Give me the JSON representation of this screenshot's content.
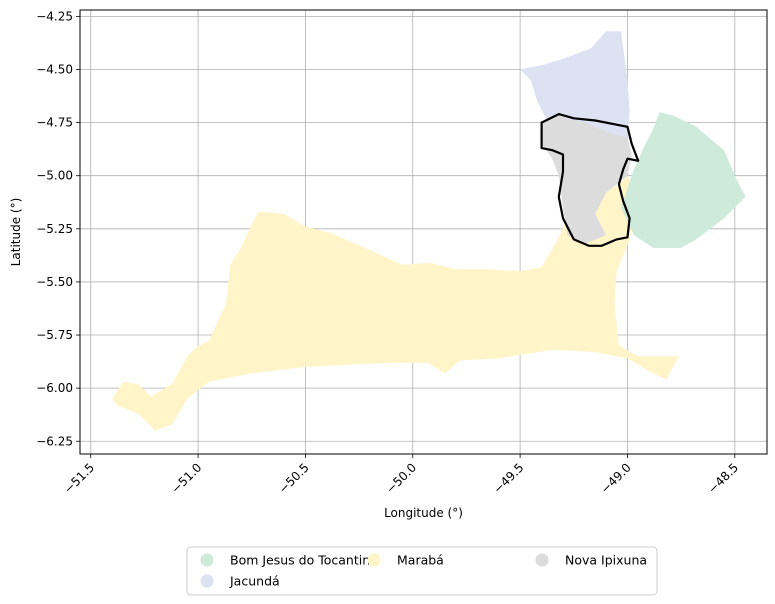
{
  "chart_data": {
    "type": "map",
    "xlabel": "Longitude (°)",
    "ylabel": "Latitude (°)",
    "xlim": [
      -51.55,
      -48.35
    ],
    "ylim": [
      -6.31,
      -4.22
    ],
    "grid": true,
    "x_ticks": [
      -51.5,
      -51.0,
      -50.5,
      -50.0,
      -49.5,
      -49.0,
      -48.5
    ],
    "x_tick_labels": [
      "−51.5",
      "−51.0",
      "−50.5",
      "−50.0",
      "−49.5",
      "−49.0",
      "−48.5"
    ],
    "y_ticks": [
      -4.25,
      -4.5,
      -4.75,
      -5.0,
      -5.25,
      -5.5,
      -5.75,
      -6.0,
      -6.25
    ],
    "y_tick_labels": [
      "−4.25",
      "−4.50",
      "−4.75",
      "−5.00",
      "−5.25",
      "−5.50",
      "−5.75",
      "−6.00",
      "−6.25"
    ],
    "legend_position": "bottom-center",
    "regions": [
      {
        "name": "Marabá",
        "color": "#fff5c8",
        "coords": [
          [
            -51.4,
            -6.05
          ],
          [
            -51.35,
            -5.97
          ],
          [
            -51.28,
            -5.98
          ],
          [
            -51.22,
            -6.04
          ],
          [
            -51.12,
            -5.98
          ],
          [
            -51.05,
            -5.85
          ],
          [
            -51.0,
            -5.8
          ],
          [
            -50.95,
            -5.78
          ],
          [
            -50.87,
            -5.6
          ],
          [
            -50.85,
            -5.42
          ],
          [
            -50.8,
            -5.34
          ],
          [
            -50.76,
            -5.25
          ],
          [
            -50.72,
            -5.17
          ],
          [
            -50.6,
            -5.18
          ],
          [
            -50.5,
            -5.24
          ],
          [
            -50.38,
            -5.27
          ],
          [
            -50.2,
            -5.35
          ],
          [
            -50.05,
            -5.42
          ],
          [
            -49.92,
            -5.41
          ],
          [
            -49.8,
            -5.44
          ],
          [
            -49.65,
            -5.44
          ],
          [
            -49.5,
            -5.45
          ],
          [
            -49.4,
            -5.43
          ],
          [
            -49.33,
            -5.31
          ],
          [
            -49.28,
            -5.2
          ],
          [
            -49.23,
            -5.12
          ],
          [
            -49.15,
            -5.08
          ],
          [
            -49.05,
            -5.05
          ],
          [
            -49.0,
            -5.0
          ],
          [
            -48.97,
            -5.06
          ],
          [
            -48.97,
            -5.16
          ],
          [
            -48.99,
            -5.3
          ],
          [
            -49.05,
            -5.45
          ],
          [
            -49.06,
            -5.6
          ],
          [
            -49.04,
            -5.8
          ],
          [
            -48.95,
            -5.85
          ],
          [
            -48.76,
            -5.85
          ],
          [
            -48.82,
            -5.96
          ],
          [
            -48.9,
            -5.92
          ],
          [
            -49.0,
            -5.86
          ],
          [
            -49.15,
            -5.83
          ],
          [
            -49.35,
            -5.82
          ],
          [
            -49.6,
            -5.86
          ],
          [
            -49.78,
            -5.87
          ],
          [
            -49.85,
            -5.93
          ],
          [
            -49.93,
            -5.88
          ],
          [
            -50.1,
            -5.88
          ],
          [
            -50.3,
            -5.89
          ],
          [
            -50.5,
            -5.9
          ],
          [
            -50.75,
            -5.93
          ],
          [
            -50.95,
            -5.97
          ],
          [
            -51.05,
            -6.05
          ],
          [
            -51.12,
            -6.17
          ],
          [
            -51.2,
            -6.2
          ],
          [
            -51.28,
            -6.12
          ],
          [
            -51.38,
            -6.08
          ]
        ]
      },
      {
        "name": "Jacundá",
        "color": "#dde2f2",
        "coords": [
          [
            -49.5,
            -4.5
          ],
          [
            -49.45,
            -4.55
          ],
          [
            -49.42,
            -4.65
          ],
          [
            -49.37,
            -4.75
          ],
          [
            -49.25,
            -4.78
          ],
          [
            -49.1,
            -4.8
          ],
          [
            -49.0,
            -4.82
          ],
          [
            -48.99,
            -4.7
          ],
          [
            -49.0,
            -4.55
          ],
          [
            -49.02,
            -4.4
          ],
          [
            -49.03,
            -4.32
          ],
          [
            -49.1,
            -4.32
          ],
          [
            -49.17,
            -4.4
          ],
          [
            -49.3,
            -4.45
          ],
          [
            -49.4,
            -4.48
          ]
        ]
      },
      {
        "name": "Nova Ipixuna",
        "color": "#dcdcdc",
        "coords": [
          [
            -49.4,
            -4.75
          ],
          [
            -49.32,
            -4.72
          ],
          [
            -49.2,
            -4.75
          ],
          [
            -49.08,
            -4.8
          ],
          [
            -49.0,
            -4.82
          ],
          [
            -48.98,
            -4.9
          ],
          [
            -49.0,
            -5.0
          ],
          [
            -49.1,
            -5.08
          ],
          [
            -49.15,
            -5.18
          ],
          [
            -49.1,
            -5.28
          ],
          [
            -49.2,
            -5.32
          ],
          [
            -49.28,
            -5.28
          ],
          [
            -49.3,
            -5.15
          ],
          [
            -49.32,
            -5.0
          ],
          [
            -49.35,
            -4.92
          ],
          [
            -49.4,
            -4.85
          ]
        ]
      },
      {
        "name": "Bom Jesus do Tocantins",
        "color": "#cdeadb",
        "coords": [
          [
            -48.97,
            -4.97
          ],
          [
            -48.93,
            -4.88
          ],
          [
            -48.88,
            -4.78
          ],
          [
            -48.85,
            -4.7
          ],
          [
            -48.78,
            -4.72
          ],
          [
            -48.68,
            -4.77
          ],
          [
            -48.55,
            -4.88
          ],
          [
            -48.5,
            -5.0
          ],
          [
            -48.45,
            -5.1
          ],
          [
            -48.55,
            -5.2
          ],
          [
            -48.68,
            -5.3
          ],
          [
            -48.75,
            -5.34
          ],
          [
            -48.88,
            -5.34
          ],
          [
            -48.97,
            -5.28
          ],
          [
            -49.03,
            -5.15
          ]
        ]
      }
    ],
    "outline": [
      [
        -49.4,
        -4.75
      ],
      [
        -49.32,
        -4.71
      ],
      [
        -49.25,
        -4.73
      ],
      [
        -49.15,
        -4.74
      ],
      [
        -49.05,
        -4.76
      ],
      [
        -49.0,
        -4.77
      ],
      [
        -48.98,
        -4.85
      ],
      [
        -48.95,
        -4.93
      ],
      [
        -49.0,
        -4.92
      ],
      [
        -49.02,
        -4.97
      ],
      [
        -49.04,
        -5.04
      ],
      [
        -49.02,
        -5.12
      ],
      [
        -48.99,
        -5.2
      ],
      [
        -49.0,
        -5.29
      ],
      [
        -49.05,
        -5.3
      ],
      [
        -49.12,
        -5.33
      ],
      [
        -49.18,
        -5.33
      ],
      [
        -49.25,
        -5.3
      ],
      [
        -49.3,
        -5.2
      ],
      [
        -49.32,
        -5.1
      ],
      [
        -49.3,
        -4.98
      ],
      [
        -49.3,
        -4.9
      ],
      [
        -49.35,
        -4.88
      ],
      [
        -49.4,
        -4.87
      ],
      [
        -49.4,
        -4.8
      ]
    ]
  },
  "legend": {
    "items": [
      {
        "label": "Bom Jesus do Tocantins",
        "color": "#cdeadb"
      },
      {
        "label": "Jacundá",
        "color": "#dde2f2"
      },
      {
        "label": "Marabá",
        "color": "#fff5c8"
      },
      {
        "label": "Nova Ipixuna",
        "color": "#dcdcdc"
      }
    ]
  }
}
